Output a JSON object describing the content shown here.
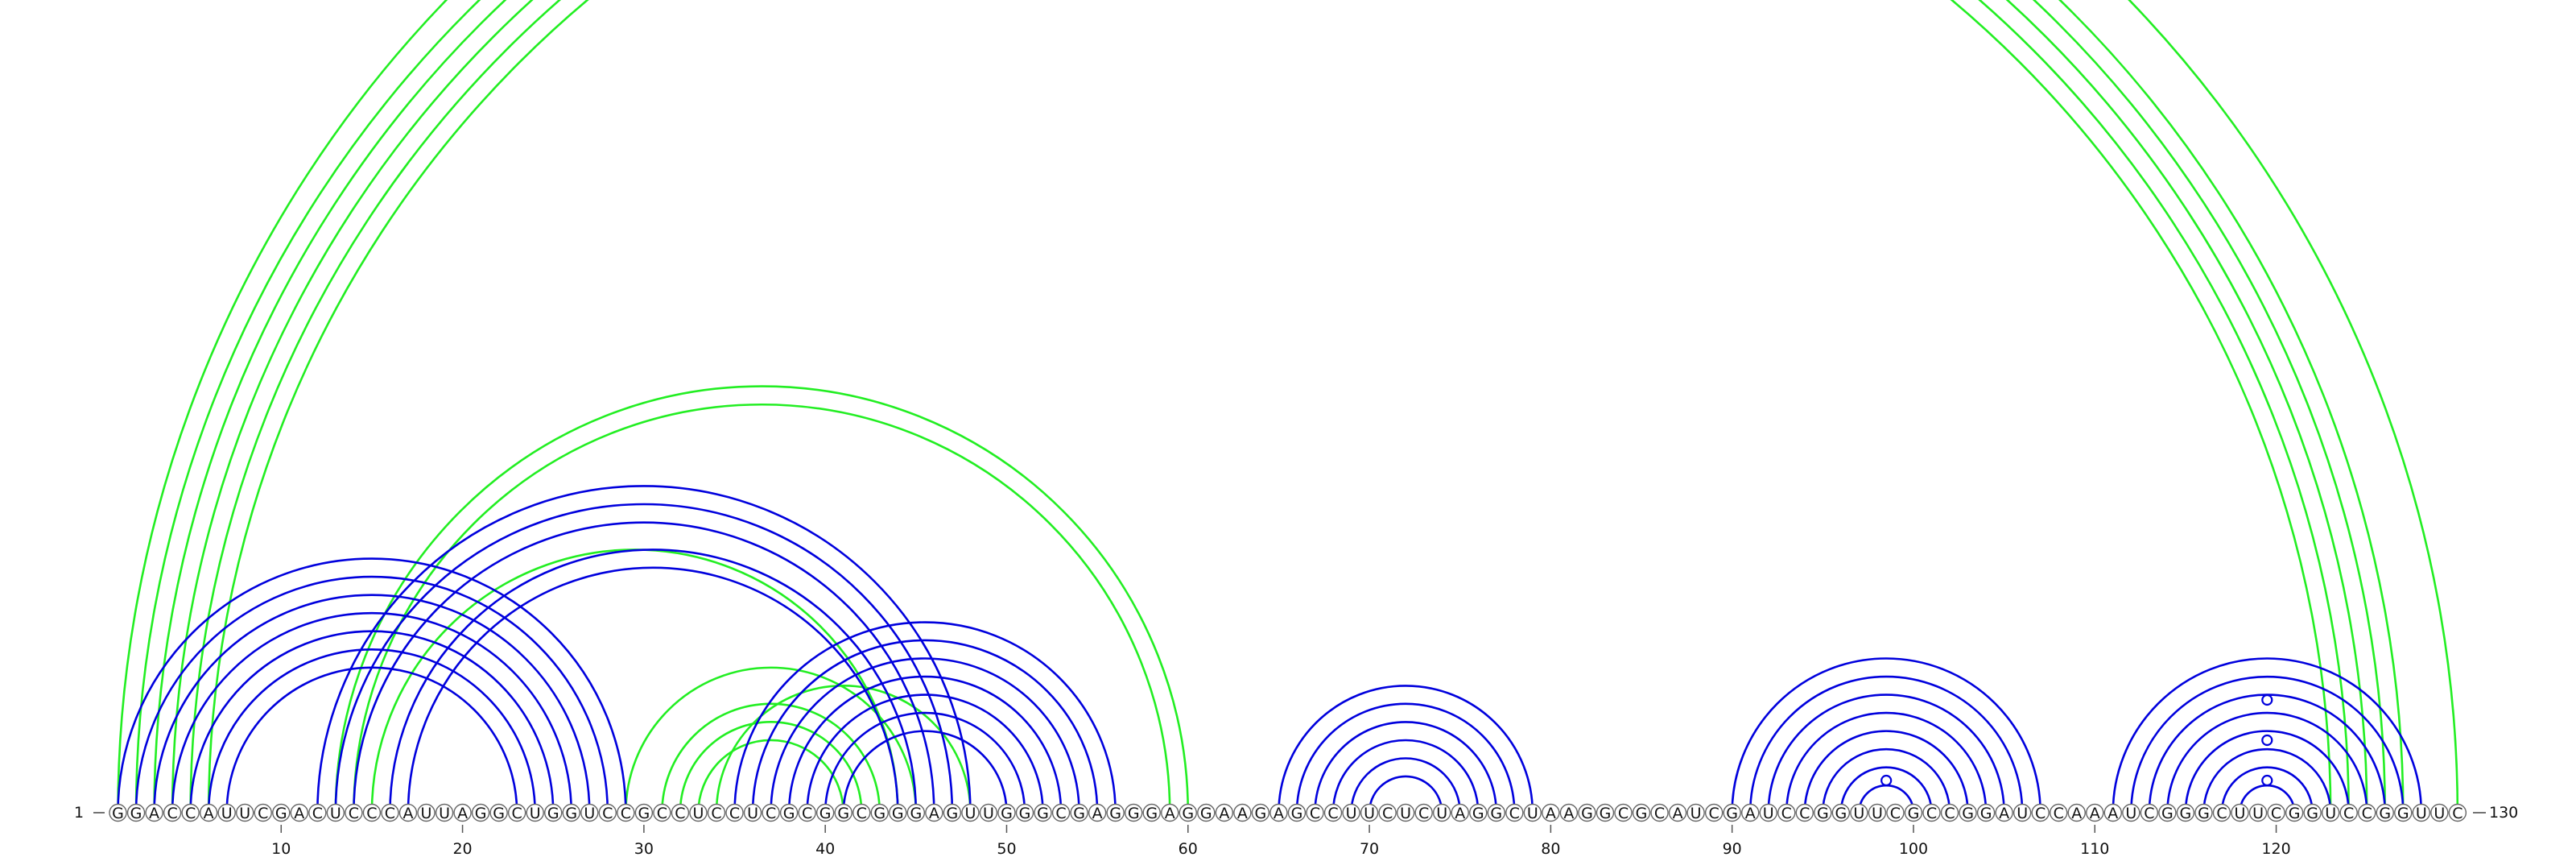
{
  "sequence": {
    "text": "GGACCAUUCGACUCCCAUUAGGCUGGUCCGCCUCCUCGCGGCGGGAGUUGGGCGAGGGAGGAAGAGCCUUCUCUAGGCUAAGGCGCAUCGAUCCGGUUCGCCGGAUCCAAAUCGGGCUUCGGUCCGGUUC",
    "length": 130,
    "start_label": "1",
    "end_label": "130"
  },
  "axis": {
    "ticks": [
      10,
      20,
      30,
      40,
      50,
      60,
      70,
      80,
      90,
      100,
      110,
      120
    ],
    "tick_labels": [
      "10",
      "20",
      "30",
      "40",
      "50",
      "60",
      "70",
      "80",
      "90",
      "100",
      "110",
      "120"
    ]
  },
  "colors": {
    "blue": "#0000dd",
    "green": "#22ee22",
    "circle_stroke": "#666666"
  },
  "helices": [
    {
      "color": "green",
      "pairs": [
        [
          1,
          130
        ],
        [
          2,
          127
        ],
        [
          3,
          126
        ],
        [
          4,
          125
        ],
        [
          5,
          124
        ],
        [
          6,
          123
        ]
      ]
    },
    {
      "color": "green",
      "pairs": [
        [
          13,
          60
        ],
        [
          14,
          59
        ]
      ]
    },
    {
      "color": "green",
      "pairs": [
        [
          15,
          44
        ]
      ]
    },
    {
      "color": "green",
      "pairs": [
        [
          29,
          45
        ],
        [
          31,
          43
        ],
        [
          32,
          42
        ],
        [
          33,
          41
        ]
      ]
    },
    {
      "color": "green",
      "pairs": [
        [
          34,
          48
        ]
      ]
    },
    {
      "color": "blue",
      "pairs": [
        [
          1,
          29
        ],
        [
          2,
          28
        ],
        [
          3,
          27
        ],
        [
          4,
          26
        ],
        [
          5,
          25
        ],
        [
          6,
          24
        ],
        [
          7,
          23
        ]
      ]
    },
    {
      "color": "blue",
      "pairs": [
        [
          12,
          48
        ],
        [
          13,
          47
        ],
        [
          14,
          46
        ],
        [
          16,
          45
        ],
        [
          17,
          44
        ]
      ]
    },
    {
      "color": "blue",
      "pairs": [
        [
          35,
          56
        ],
        [
          36,
          55
        ],
        [
          37,
          54
        ],
        [
          38,
          53
        ],
        [
          39,
          52
        ],
        [
          40,
          51
        ],
        [
          41,
          50
        ]
      ]
    },
    {
      "color": "blue",
      "pairs": [
        [
          65,
          79
        ],
        [
          66,
          78
        ],
        [
          67,
          77
        ],
        [
          68,
          76
        ],
        [
          69,
          75
        ],
        [
          70,
          74
        ]
      ]
    },
    {
      "color": "blue",
      "pairs": [
        [
          90,
          107
        ],
        [
          91,
          106
        ],
        [
          92,
          105
        ],
        [
          93,
          104
        ],
        [
          94,
          103
        ],
        [
          95,
          102
        ],
        [
          96,
          101
        ],
        [
          97,
          100
        ]
      ]
    },
    {
      "color": "blue",
      "pairs": [
        [
          111,
          128
        ],
        [
          112,
          127
        ],
        [
          113,
          126
        ],
        [
          114,
          125
        ],
        [
          115,
          124
        ],
        [
          116,
          123
        ],
        [
          117,
          122
        ],
        [
          118,
          121
        ]
      ]
    }
  ],
  "markers": [
    {
      "position": 98.5,
      "level": 0.15
    },
    {
      "position": 119.5,
      "level": 0.15
    },
    {
      "position": 119.5,
      "level": 0.4
    },
    {
      "position": 119.5,
      "level": 0.65
    }
  ]
}
